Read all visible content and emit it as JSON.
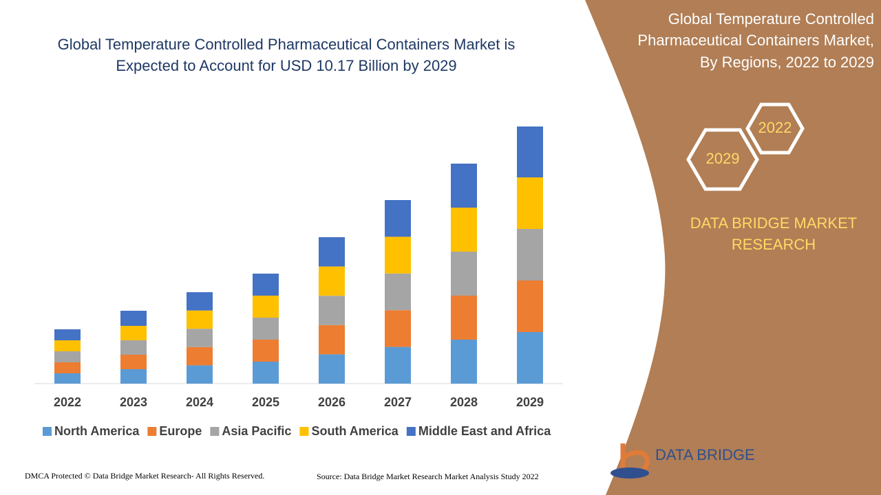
{
  "chart_data": {
    "type": "stacked-bar",
    "title": "Global Temperature Controlled Pharmaceutical Containers Market is Expected to Account for USD 10.17 Billion by 2029",
    "categories": [
      "2022",
      "2023",
      "2024",
      "2025",
      "2026",
      "2027",
      "2028",
      "2029"
    ],
    "series": [
      {
        "name": "North America",
        "color": "#5b9bd5",
        "values": [
          15,
          21,
          26.6,
          32,
          42.6,
          53.4,
          64,
          75
        ]
      },
      {
        "name": "Europe",
        "color": "#ed7d31",
        "values": [
          16,
          21,
          26.6,
          32,
          42.6,
          53.4,
          64,
          75
        ]
      },
      {
        "name": "Asia Pacific",
        "color": "#a5a5a5",
        "values": [
          16,
          21,
          26.6,
          32,
          42.6,
          53.4,
          64,
          75
        ]
      },
      {
        "name": "South America",
        "color": "#ffc000",
        "values": [
          16,
          21,
          26.6,
          32,
          42.6,
          53.4,
          64,
          75
        ]
      },
      {
        "name": "Middle East and Africa",
        "color": "#4472c4",
        "values": [
          16,
          22,
          26.6,
          32,
          42.6,
          53.4,
          64,
          74
        ]
      }
    ],
    "legend": "bottom"
  },
  "panel": {
    "title_lines": [
      "Global Temperature Controlled",
      "Pharmaceutical Containers Market,",
      "By Regions, 2022 to 2029"
    ],
    "hex_years": [
      "2022",
      "2029"
    ],
    "brand_lines": [
      "DATA BRIDGE MARKET",
      "RESEARCH"
    ],
    "logo_text": "DATA BRIDGE"
  },
  "footer": {
    "copyright": "DMCA Protected © Data Bridge Market Research- All Rights Reserved.",
    "source": "Source: Data Bridge Market Research Market Analysis Study 2022"
  }
}
